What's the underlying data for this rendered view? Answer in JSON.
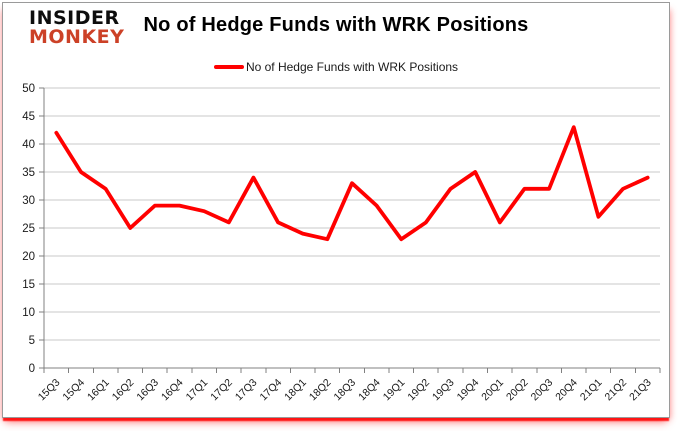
{
  "logo": {
    "line1": "INSIDER",
    "line2": "MONKEY"
  },
  "header": {
    "title": "No of Hedge Funds with WRK Positions"
  },
  "legend": {
    "label": "No of Hedge Funds with WRK Positions"
  },
  "colors": {
    "series": "#ff0000",
    "logo_red": "#cc4127",
    "gridline": "#c9c9c9",
    "axis": "#808080",
    "tick_label": "#1a1a1a",
    "frame_border": "#9a9a9a",
    "bottom_glow": "#ff0000"
  },
  "chart_data": {
    "type": "line",
    "title": "No of Hedge Funds with WRK Positions",
    "xlabel": "",
    "ylabel": "",
    "categories": [
      "15Q3",
      "15Q4",
      "16Q1",
      "16Q2",
      "16Q3",
      "16Q4",
      "17Q1",
      "17Q2",
      "17Q3",
      "17Q4",
      "18Q1",
      "18Q2",
      "18Q3",
      "18Q4",
      "19Q1",
      "19Q2",
      "19Q3",
      "19Q4",
      "20Q1",
      "20Q2",
      "20Q3",
      "20Q4",
      "21Q1",
      "21Q2",
      "21Q3"
    ],
    "series": [
      {
        "name": "No of Hedge Funds with WRK Positions",
        "color": "#ff0000",
        "values": [
          42,
          35,
          32,
          25,
          29,
          29,
          28,
          26,
          34,
          26,
          24,
          23,
          33,
          29,
          23,
          26,
          32,
          35,
          26,
          32,
          32,
          43,
          27,
          32,
          34
        ]
      }
    ],
    "ylim": [
      0,
      50
    ],
    "ytick_step": 5,
    "grid": true,
    "legend_position": "top-center"
  }
}
